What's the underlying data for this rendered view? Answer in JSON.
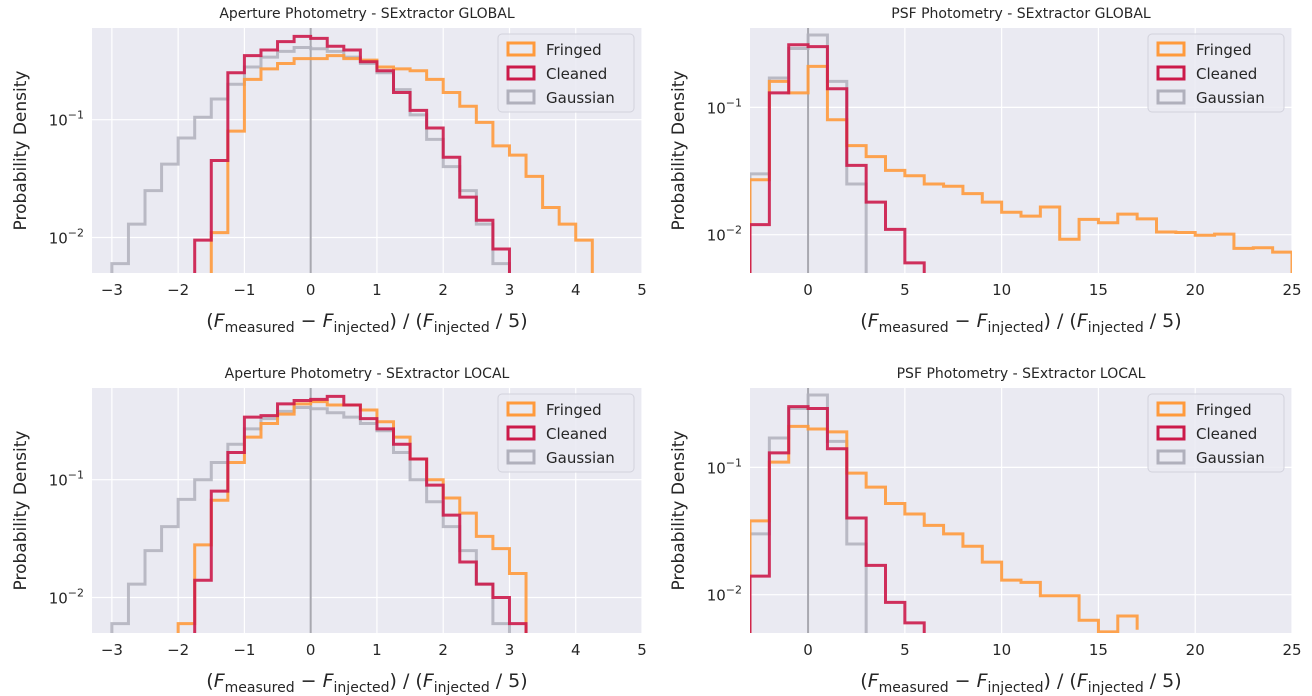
{
  "figure": {
    "series_colors": {
      "Fringed": "#ff9a3c",
      "Cleaned": "#cc1a4a",
      "Gaussian": "#b0b0bc"
    },
    "background": "#eaeaf2"
  },
  "chart_data": [
    {
      "type": "step",
      "title": "Aperture Photometry - SExtractor GLOBAL",
      "xlabel": "(F_measured − F_injected) / (F_injected / 5)",
      "ylabel": "Probability Density",
      "xlim": [
        -3.3,
        5
      ],
      "ylim": [
        0.005,
        0.6
      ],
      "yscale": "log",
      "xticks": [
        -3,
        -2,
        -1,
        0,
        1,
        2,
        3,
        4,
        5
      ],
      "yticks": [
        0.1,
        0.01
      ],
      "ytick_labels": [
        "10^-1",
        "10^-2"
      ],
      "vline_x": 0,
      "legend": {
        "position": "top-right",
        "entries": [
          "Fringed",
          "Cleaned",
          "Gaussian"
        ]
      },
      "series": [
        {
          "name": "Gaussian",
          "edges": [
            -3.0,
            -2.75,
            -2.5,
            -2.25,
            -2.0,
            -1.75,
            -1.5,
            -1.25,
            -1.0,
            -0.75,
            -0.5,
            -0.25,
            0.0,
            0.25,
            0.5,
            0.75,
            1.0,
            1.25,
            1.5,
            1.75,
            2.0,
            2.25,
            2.5,
            2.75,
            3.0
          ],
          "values": [
            0.006,
            0.013,
            0.025,
            0.042,
            0.07,
            0.105,
            0.15,
            0.2,
            0.28,
            0.34,
            0.38,
            0.41,
            0.4,
            0.38,
            0.34,
            0.3,
            0.25,
            0.18,
            0.11,
            0.068,
            0.04,
            0.025,
            0.013,
            0.006
          ]
        },
        {
          "name": "Fringed",
          "edges": [
            -1.5,
            -1.25,
            -1.0,
            -0.75,
            -0.5,
            -0.25,
            0.0,
            0.25,
            0.5,
            0.75,
            1.0,
            1.25,
            1.5,
            1.75,
            2.0,
            2.25,
            2.5,
            2.75,
            3.0,
            3.25,
            3.5,
            3.75,
            4.0,
            4.25
          ],
          "values": [
            0.011,
            0.08,
            0.22,
            0.27,
            0.3,
            0.33,
            0.33,
            0.35,
            0.33,
            0.32,
            0.28,
            0.27,
            0.26,
            0.22,
            0.17,
            0.13,
            0.095,
            0.06,
            0.05,
            0.033,
            0.018,
            0.013,
            0.0095
          ]
        },
        {
          "name": "Cleaned",
          "edges": [
            -1.75,
            -1.5,
            -1.25,
            -1.0,
            -0.75,
            -0.5,
            -0.25,
            0.0,
            0.25,
            0.5,
            0.75,
            1.0,
            1.25,
            1.5,
            1.75,
            2.0,
            2.25,
            2.5,
            2.75,
            3.0
          ],
          "values": [
            0.0095,
            0.045,
            0.25,
            0.35,
            0.39,
            0.46,
            0.51,
            0.49,
            0.42,
            0.39,
            0.31,
            0.26,
            0.17,
            0.12,
            0.085,
            0.048,
            0.022,
            0.014,
            0.008
          ]
        }
      ]
    },
    {
      "type": "step",
      "title": "PSF Photometry - SExtractor GLOBAL",
      "xlabel": "(F_measured − F_injected) / (F_injected / 5)",
      "ylabel": "Probability Density",
      "xlim": [
        -3,
        25
      ],
      "ylim": [
        0.005,
        0.42
      ],
      "yscale": "log",
      "xticks": [
        0,
        5,
        10,
        15,
        20,
        25
      ],
      "yticks": [
        0.1,
        0.01
      ],
      "ytick_labels": [
        "10^-1",
        "10^-2"
      ],
      "vline_x": 0,
      "legend": {
        "position": "top-right",
        "entries": [
          "Fringed",
          "Cleaned",
          "Gaussian"
        ]
      },
      "series": [
        {
          "name": "Gaussian",
          "edges": [
            -3.0,
            -2.0,
            -1.0,
            0.0,
            1.0,
            2.0,
            3.0
          ],
          "values": [
            0.03,
            0.17,
            0.29,
            0.37,
            0.16,
            0.025
          ]
        },
        {
          "name": "Fringed",
          "edges": [
            -3.0,
            -2.0,
            -1.0,
            0.0,
            1.0,
            2.0,
            3.0,
            4.0,
            5.0,
            6.0,
            7.0,
            8.0,
            9.0,
            10.0,
            11.0,
            12.0,
            13.0,
            14.0,
            15.0,
            16.0,
            17.0,
            18.0,
            19.0,
            20.0,
            21.0,
            22.0,
            23.0,
            24.0,
            25.0
          ],
          "values": [
            0.027,
            0.16,
            0.13,
            0.21,
            0.08,
            0.05,
            0.041,
            0.032,
            0.029,
            0.025,
            0.024,
            0.021,
            0.018,
            0.015,
            0.014,
            0.0165,
            0.0092,
            0.0132,
            0.0124,
            0.0145,
            0.0133,
            0.0105,
            0.0104,
            0.0099,
            0.0101,
            0.0078,
            0.0079,
            0.0073
          ]
        },
        {
          "name": "Cleaned",
          "edges": [
            -3.0,
            -2.0,
            -1.0,
            0.0,
            1.0,
            2.0,
            3.0,
            4.0,
            5.0,
            6.0
          ],
          "values": [
            0.012,
            0.13,
            0.31,
            0.3,
            0.14,
            0.035,
            0.018,
            0.011,
            0.006
          ]
        }
      ]
    },
    {
      "type": "step",
      "title": "Aperture Photometry - SExtractor LOCAL",
      "xlabel": "(F_measured − F_injected) / (F_injected / 5)",
      "ylabel": "Probability Density",
      "xlim": [
        -3.3,
        5
      ],
      "ylim": [
        0.005,
        0.6
      ],
      "yscale": "log",
      "xticks": [
        -3,
        -2,
        -1,
        0,
        1,
        2,
        3,
        4,
        5
      ],
      "yticks": [
        0.1,
        0.01
      ],
      "ytick_labels": [
        "10^-1",
        "10^-2"
      ],
      "vline_x": 0,
      "legend": {
        "position": "top-right",
        "entries": [
          "Fringed",
          "Cleaned",
          "Gaussian"
        ]
      },
      "series": [
        {
          "name": "Gaussian",
          "edges": [
            -3.0,
            -2.75,
            -2.5,
            -2.25,
            -2.0,
            -1.75,
            -1.5,
            -1.25,
            -1.0,
            -0.75,
            -0.5,
            -0.25,
            0.0,
            0.25,
            0.5,
            0.75,
            1.0,
            1.25,
            1.5,
            1.75,
            2.0,
            2.25,
            2.5,
            2.75,
            3.0
          ],
          "values": [
            0.006,
            0.013,
            0.025,
            0.04,
            0.068,
            0.1,
            0.14,
            0.2,
            0.27,
            0.33,
            0.38,
            0.41,
            0.4,
            0.37,
            0.34,
            0.3,
            0.26,
            0.17,
            0.1,
            0.065,
            0.04,
            0.025,
            0.013,
            0.006
          ]
        },
        {
          "name": "Fringed",
          "edges": [
            -2.0,
            -1.75,
            -1.5,
            -1.25,
            -1.0,
            -0.75,
            -0.5,
            -0.25,
            0.0,
            0.25,
            0.5,
            0.75,
            1.0,
            1.25,
            1.5,
            1.75,
            2.0,
            2.25,
            2.5,
            2.75,
            3.0,
            3.25
          ],
          "values": [
            0.006,
            0.028,
            0.067,
            0.14,
            0.23,
            0.3,
            0.36,
            0.44,
            0.46,
            0.43,
            0.43,
            0.39,
            0.31,
            0.23,
            0.15,
            0.1,
            0.07,
            0.052,
            0.033,
            0.026,
            0.016
          ]
        },
        {
          "name": "Cleaned",
          "edges": [
            -1.75,
            -1.5,
            -1.25,
            -1.0,
            -0.75,
            -0.5,
            -0.25,
            0.0,
            0.25,
            0.5,
            0.75,
            1.0,
            1.25,
            1.5,
            1.75,
            2.0,
            2.25,
            2.5,
            2.75,
            3.0,
            3.25
          ],
          "values": [
            0.014,
            0.08,
            0.17,
            0.34,
            0.35,
            0.44,
            0.47,
            0.48,
            0.51,
            0.43,
            0.33,
            0.27,
            0.2,
            0.15,
            0.09,
            0.05,
            0.02,
            0.013,
            0.01,
            0.006
          ]
        }
      ]
    },
    {
      "type": "step",
      "title": "PSF Photometry - SExtractor LOCAL",
      "xlabel": "(F_measured − F_injected) / (F_injected / 5)",
      "ylabel": "Probability Density",
      "xlim": [
        -3,
        25
      ],
      "ylim": [
        0.005,
        0.42
      ],
      "yscale": "log",
      "xticks": [
        0,
        5,
        10,
        15,
        20,
        25
      ],
      "yticks": [
        0.1,
        0.01
      ],
      "ytick_labels": [
        "10^-1",
        "10^-2"
      ],
      "vline_x": 0,
      "legend": {
        "position": "top-right",
        "entries": [
          "Fringed",
          "Cleaned",
          "Gaussian"
        ]
      },
      "series": [
        {
          "name": "Gaussian",
          "edges": [
            -3.0,
            -2.0,
            -1.0,
            0.0,
            1.0,
            2.0,
            3.0
          ],
          "values": [
            0.03,
            0.17,
            0.29,
            0.37,
            0.16,
            0.025
          ]
        },
        {
          "name": "Fringed",
          "edges": [
            -3.0,
            -2.0,
            -1.0,
            0.0,
            1.0,
            2.0,
            3.0,
            4.0,
            5.0,
            6.0,
            7.0,
            8.0,
            9.0,
            10.0,
            11.0,
            12.0,
            13.0,
            14.0,
            15.0,
            16.0,
            17.0
          ],
          "values": [
            0.038,
            0.11,
            0.21,
            0.2,
            0.19,
            0.09,
            0.07,
            0.052,
            0.043,
            0.035,
            0.03,
            0.024,
            0.018,
            0.013,
            0.0125,
            0.0098,
            0.0098,
            0.0063,
            0.0051,
            0.0068,
            0.0053
          ]
        },
        {
          "name": "Cleaned",
          "edges": [
            -3.0,
            -2.0,
            -1.0,
            0.0,
            1.0,
            2.0,
            3.0,
            4.0,
            5.0,
            6.0
          ],
          "values": [
            0.014,
            0.13,
            0.3,
            0.29,
            0.14,
            0.04,
            0.017,
            0.0087,
            0.006
          ]
        }
      ]
    }
  ]
}
